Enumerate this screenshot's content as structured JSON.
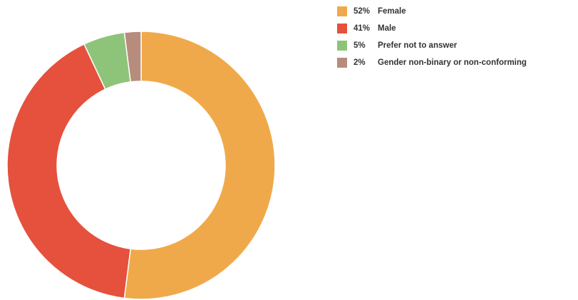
{
  "chart_data": {
    "type": "pie",
    "variant": "donut",
    "categories": [
      "Female",
      "Male",
      "Prefer not to answer",
      "Gender non-binary or non-conforming"
    ],
    "values": [
      52,
      41,
      5,
      2
    ],
    "unit": "%",
    "legend_labels": [
      {
        "pct": "52%",
        "label": "Female"
      },
      {
        "pct": "41%",
        "label": "Male"
      },
      {
        "pct": "5%",
        "label": "Prefer not to answer"
      },
      {
        "pct": "2%",
        "label": "Gender non-binary or non-conforming"
      }
    ],
    "colors": [
      "#F0A94A",
      "#E5513C",
      "#8EC47A",
      "#B88C7C"
    ],
    "start": "top, clockwise",
    "legend_position": "top-right"
  }
}
